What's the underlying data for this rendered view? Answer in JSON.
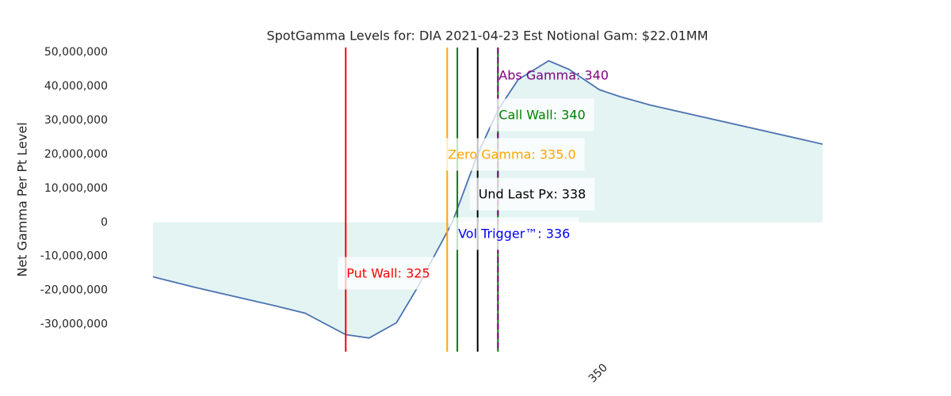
{
  "chart_data": {
    "type": "line",
    "title": "SpotGamma Levels for: DIA  2021-04-23 Est Notional Gam: $22.01MM",
    "y_label": "Net Gamma Per Pt Level",
    "x": [
      306,
      310,
      318,
      321,
      325,
      327.3,
      330,
      332,
      335.5,
      338,
      340,
      342,
      345,
      347,
      350,
      352,
      355,
      372
    ],
    "series": [
      {
        "color": "#4c72b0",
        "fill": "#e3f4f2",
        "values": [
          -16000000,
          -19000000,
          -24500000,
          -26700000,
          -33000000,
          -34000000,
          -29500000,
          -19500000,
          0,
          20000000,
          33000000,
          42000000,
          47500000,
          45000000,
          39000000,
          37000000,
          34500000,
          23000000
        ]
      }
    ],
    "xlim": [
      306,
      372
    ],
    "xticks": [
      350
    ],
    "ylim": [
      -38000000,
      51400000
    ],
    "yticks": [
      {
        "value": -30000000,
        "label": "-30,000,000"
      },
      {
        "value": -20000000,
        "label": "-20,000,000"
      },
      {
        "value": -10000000,
        "label": "-10,000,000"
      },
      {
        "value": 0,
        "label": "0"
      },
      {
        "value": 10000000,
        "label": "10,000,000"
      },
      {
        "value": 20000000,
        "label": "20,000,000"
      },
      {
        "value": 30000000,
        "label": "30,000,000"
      },
      {
        "value": 40000000,
        "label": "40,000,000"
      },
      {
        "value": 50000000,
        "label": "50,000,000"
      }
    ],
    "levels": [
      {
        "label": "Put Wall: 325",
        "x": 325,
        "color": "#ff0000"
      },
      {
        "label": "Zero Gamma: 335.0",
        "x": 335,
        "color": "#ffa500"
      },
      {
        "label": "Vol Trigger™: 336",
        "x": 336,
        "color": "#008000",
        "label_color": "#0000ff"
      },
      {
        "label": "Und Last Px: 338",
        "x": 338,
        "color": "#000000"
      },
      {
        "label": "Call Wall: 340",
        "x": 340,
        "color": "#008000"
      },
      {
        "label": "Abs Gamma: 340",
        "x": 340,
        "color": "#800080",
        "dashed": true
      }
    ]
  }
}
